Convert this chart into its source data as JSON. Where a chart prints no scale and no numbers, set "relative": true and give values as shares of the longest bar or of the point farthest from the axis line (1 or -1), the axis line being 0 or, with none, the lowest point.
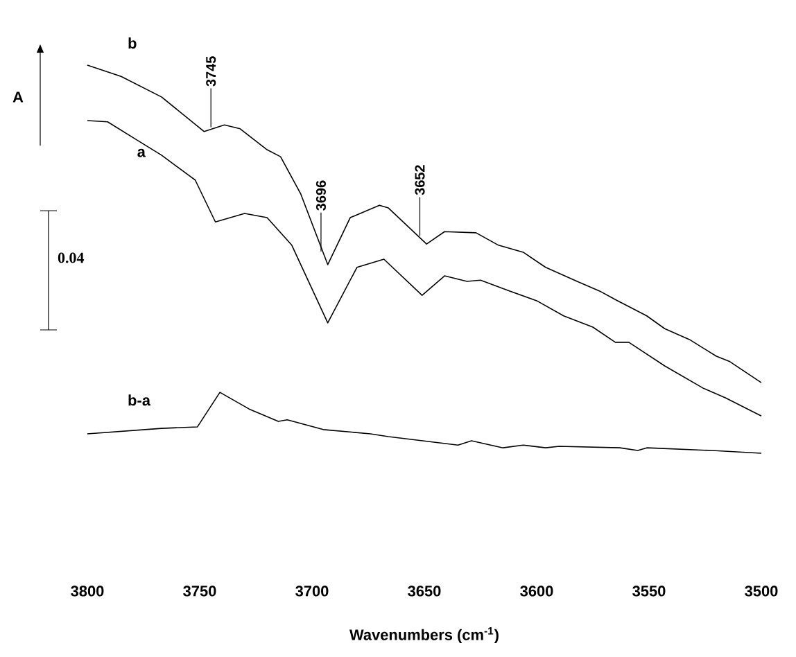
{
  "chart_data": {
    "type": "line",
    "relative": true,
    "xlabel": "Wavenumbers (cm$^{-1}$)",
    "xlim": [
      3800,
      3500
    ],
    "xticks": [
      3800,
      3750,
      3700,
      3650,
      3600,
      3550,
      3500
    ],
    "legend": false,
    "grid": false,
    "marker": "none",
    "line_style": "solid",
    "series": [
      {
        "name": "b",
        "color": "#000000",
        "x": [
          3800,
          3785,
          3767,
          3748,
          3739,
          3732,
          3720,
          3714,
          3705,
          3693,
          3683,
          3670,
          3666,
          3649,
          3641,
          3627,
          3617,
          3606,
          3596,
          3582,
          3572,
          3565,
          3551,
          3543,
          3532,
          3520,
          3514,
          3500
        ],
        "values": [
          1.0,
          0.971,
          0.918,
          0.829,
          0.846,
          0.836,
          0.782,
          0.764,
          0.668,
          0.486,
          0.607,
          0.639,
          0.632,
          0.539,
          0.571,
          0.568,
          0.536,
          0.518,
          0.479,
          0.443,
          0.418,
          0.396,
          0.354,
          0.321,
          0.293,
          0.25,
          0.236,
          0.182
        ]
      },
      {
        "name": "a",
        "color": "#000000",
        "x": [
          3800,
          3791,
          3779,
          3767,
          3752,
          3743,
          3730,
          3720,
          3709,
          3693,
          3680,
          3668,
          3651,
          3641,
          3631,
          3625,
          3612,
          3600,
          3588,
          3575,
          3565,
          3559,
          3543,
          3526,
          3516,
          3500
        ],
        "values": [
          0.857,
          0.854,
          0.811,
          0.768,
          0.704,
          0.596,
          0.618,
          0.607,
          0.536,
          0.336,
          0.479,
          0.5,
          0.407,
          0.457,
          0.443,
          0.446,
          0.418,
          0.393,
          0.354,
          0.325,
          0.286,
          0.286,
          0.225,
          0.168,
          0.143,
          0.096
        ]
      },
      {
        "name": "b-a",
        "color": "#000000",
        "x": [
          3800,
          3767,
          3751,
          3741,
          3728,
          3715,
          3711,
          3695,
          3674,
          3666,
          3635,
          3629,
          3615,
          3606,
          3596,
          3590,
          3563,
          3555,
          3551,
          3522,
          3500
        ],
        "values": [
          0.05,
          0.064,
          0.068,
          0.157,
          0.114,
          0.082,
          0.086,
          0.061,
          0.05,
          0.043,
          0.021,
          0.032,
          0.014,
          0.021,
          0.014,
          0.018,
          0.014,
          0.007,
          0.014,
          0.007,
          0.0
        ]
      }
    ],
    "annotations": [
      {
        "text": "3745",
        "x": 3745,
        "y": 0.84
      },
      {
        "text": "3696",
        "x": 3696,
        "y": 0.52
      },
      {
        "text": "3652",
        "x": 3652,
        "y": 0.56
      },
      "A",
      "0.04"
    ]
  }
}
